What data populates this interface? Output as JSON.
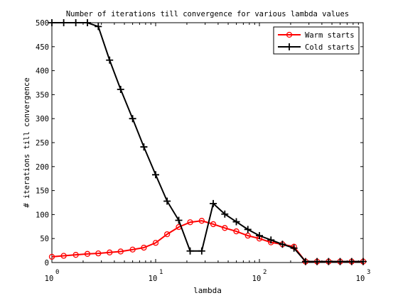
{
  "chart_data": {
    "type": "line",
    "title": "Number of iterations till convergence for various lambda values",
    "xlabel": "lambda",
    "ylabel": "# iterations till convergence",
    "xscale": "log",
    "xlim": [
      1,
      1000
    ],
    "ylim": [
      0,
      500
    ],
    "x_ticks": [
      {
        "value": 1,
        "base": "10",
        "exp": "0"
      },
      {
        "value": 10,
        "base": "10",
        "exp": "1"
      },
      {
        "value": 100,
        "base": "10",
        "exp": "2"
      },
      {
        "value": 1000,
        "base": "10",
        "exp": "3"
      }
    ],
    "y_ticks": [
      "0",
      "50",
      "100",
      "150",
      "200",
      "250",
      "300",
      "350",
      "400",
      "450",
      "500"
    ],
    "grid": false,
    "legend": {
      "position": "top-right"
    },
    "x": [
      1.0,
      1.3,
      1.7,
      2.2,
      2.8,
      3.6,
      4.6,
      6.0,
      7.7,
      10.0,
      12.9,
      16.7,
      21.5,
      27.8,
      35.9,
      46.4,
      59.9,
      77.4,
      100.0,
      129.2,
      166.8,
      215.4,
      278.3,
      359.4,
      464.2,
      599.5,
      774.3,
      1000.0
    ],
    "series": [
      {
        "name": "Warm starts",
        "color": "#ff0000",
        "marker": "circle",
        "values": [
          12,
          14,
          16,
          18,
          19,
          21,
          23,
          27,
          31,
          41,
          59,
          74,
          84,
          87,
          80,
          72,
          65,
          56,
          50,
          42,
          38,
          33,
          2,
          2,
          2,
          2,
          2,
          2
        ]
      },
      {
        "name": "Cold starts",
        "color": "#000000",
        "marker": "plus",
        "values": [
          500,
          500,
          500,
          500,
          492,
          422,
          361,
          300,
          241,
          183,
          128,
          88,
          24,
          24,
          123,
          101,
          85,
          69,
          56,
          47,
          38,
          30,
          2,
          2,
          2,
          2,
          2,
          2
        ]
      }
    ]
  }
}
